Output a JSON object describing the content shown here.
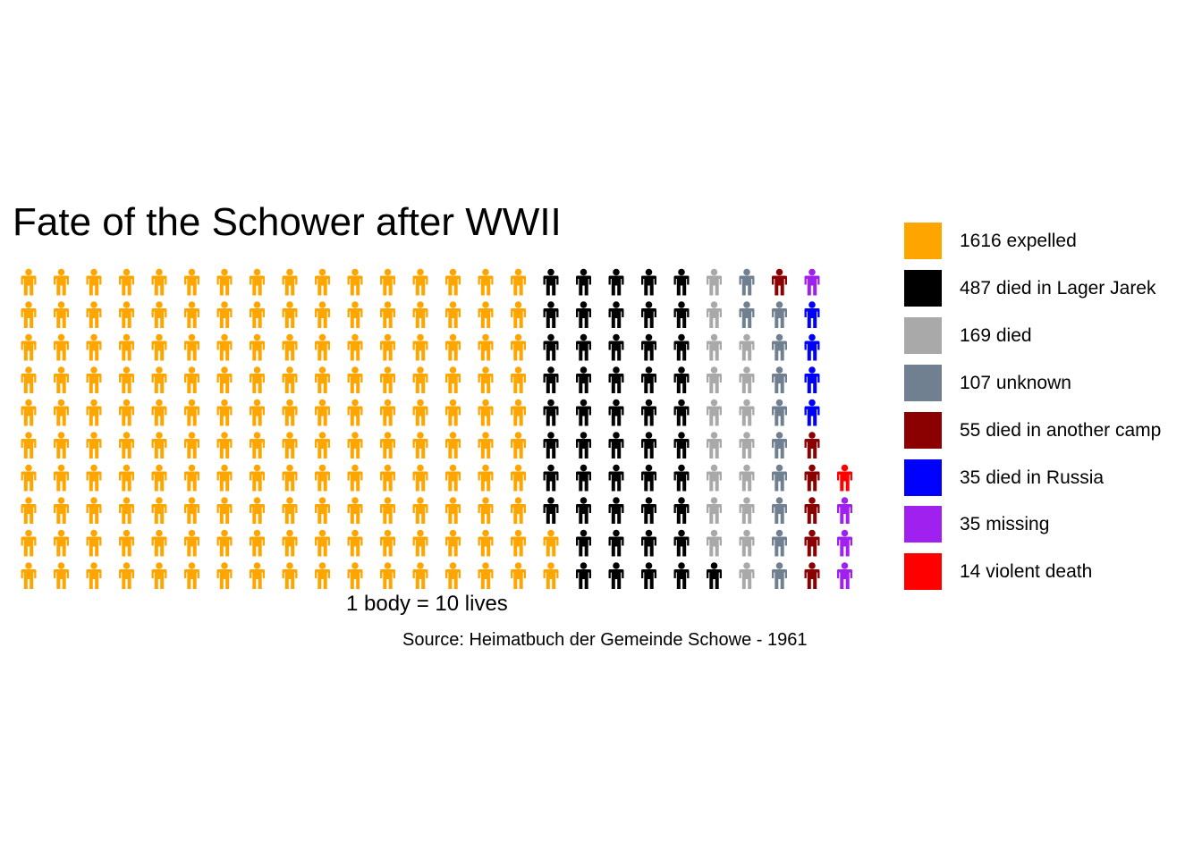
{
  "chart_data": {
    "type": "waffle",
    "title": "Fate of the Schower after WWII",
    "xlabel": "1 body = 10 lives",
    "caption": "Source: Heimatbuch der Gemeinde Schowe - 1961",
    "units_per_icon": 10,
    "rows": 10,
    "icon": "person-icon",
    "legend_position": "right",
    "grid": false,
    "series": [
      {
        "name": "1616 expelled",
        "value": 1616,
        "color": "#FFA500"
      },
      {
        "name": "487 died in Lager Jarek",
        "value": 487,
        "color": "#000000"
      },
      {
        "name": "169 died",
        "value": 169,
        "color": "#A9A9A9"
      },
      {
        "name": "107 unknown",
        "value": 107,
        "color": "#708090"
      },
      {
        "name": "55 died in another camp",
        "value": 55,
        "color": "#8B0000"
      },
      {
        "name": "35 died in Russia",
        "value": 35,
        "color": "#0000FF"
      },
      {
        "name": "35 missing",
        "value": 35,
        "color": "#A020F0"
      },
      {
        "name": "14 violent death",
        "value": 14,
        "color": "#FF0000"
      }
    ]
  }
}
